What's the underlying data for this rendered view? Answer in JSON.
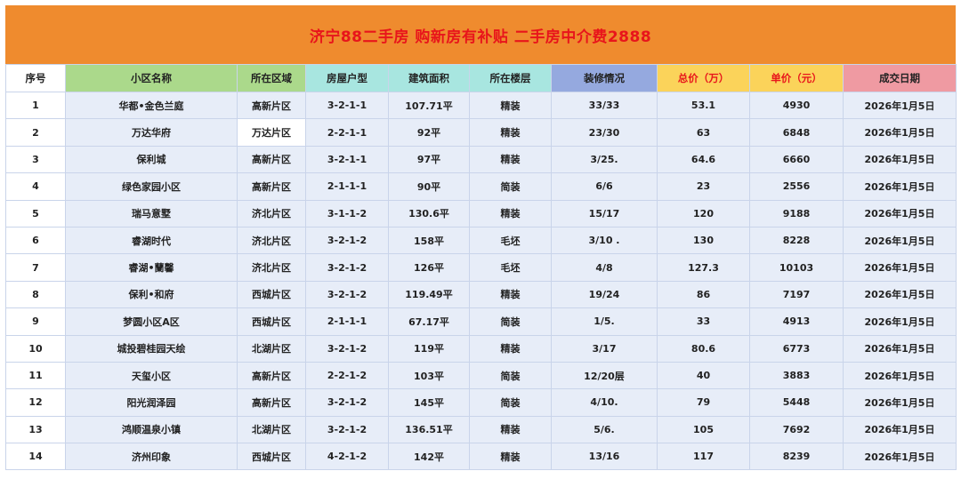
{
  "title": "济宁88二手房 购新房有补贴 二手房中介费2888",
  "headers": [
    "序号",
    "小区名称",
    "所在区域",
    "房屋户型",
    "建筑面积",
    "所在楼层",
    "装修情况",
    "总价（万）",
    "单价（元）",
    "成交日期"
  ],
  "colors": {
    "banner": "#ef8b2e",
    "title_text": "#e8151b",
    "header_green": "#abd98b",
    "header_cyan": "#a8e6e0",
    "header_blue": "#95a9df",
    "header_yellow": "#fbd35a",
    "header_pink": "#ef9aa2",
    "row_fill": "#e7edf8"
  },
  "rows": [
    [
      "1",
      "华都•金色兰庭",
      "高新片区",
      "3-2-1-1",
      "107.71平",
      "精装",
      "33/33",
      "53.1",
      "4930",
      "2026年1月5日"
    ],
    [
      "2",
      "万达华府",
      "万达片区",
      "2-2-1-1",
      "92平",
      "精装",
      "23/30",
      "63",
      "6848",
      "2026年1月5日"
    ],
    [
      "3",
      "保利城",
      "高新片区",
      "3-2-1-1",
      "97平",
      "精装",
      "3/25.",
      "64.6",
      "6660",
      "2026年1月5日"
    ],
    [
      "4",
      "绿色家园小区",
      "高新片区",
      "2-1-1-1",
      "90平",
      "简装",
      "6/6",
      "23",
      "2556",
      "2026年1月5日"
    ],
    [
      "5",
      "瑞马意墅",
      "济北片区",
      "3-1-1-2",
      "130.6平",
      "精装",
      "15/17",
      "120",
      "9188",
      "2026年1月5日"
    ],
    [
      "6",
      "睿湖时代",
      "济北片区",
      "3-2-1-2",
      "158平",
      "毛坯",
      "3/10 .",
      "130",
      "8228",
      "2026年1月5日"
    ],
    [
      "7",
      "睿湖•蘭馨",
      "济北片区",
      "3-2-1-2",
      "126平",
      "毛坯",
      "4/8",
      "127.3",
      "10103",
      "2026年1月5日"
    ],
    [
      "8",
      "保利•和府",
      "西城片区",
      "3-2-1-2",
      "119.49平",
      "精装",
      "19/24",
      "86",
      "7197",
      "2026年1月5日"
    ],
    [
      "9",
      "梦圆小区A区",
      "西城片区",
      "2-1-1-1",
      "67.17平",
      "简装",
      "1/5.",
      "33",
      "4913",
      "2026年1月5日"
    ],
    [
      "10",
      "城投碧桂园天绘",
      "北湖片区",
      "3-2-1-2",
      "119平",
      "精装",
      "3/17",
      "80.6",
      "6773",
      "2026年1月5日"
    ],
    [
      "11",
      "天玺小区",
      "高新片区",
      "2-2-1-2",
      "103平",
      "简装",
      "12/20层",
      "40",
      "3883",
      "2026年1月5日"
    ],
    [
      "12",
      "阳光润泽园",
      "高新片区",
      "3-2-1-2",
      "145平",
      "简装",
      "4/10.",
      "79",
      "5448",
      "2026年1月5日"
    ],
    [
      "13",
      "鸿顺温泉小镇",
      "北湖片区",
      "3-2-1-2",
      "136.51平",
      "精装",
      "5/6.",
      "105",
      "7692",
      "2026年1月5日"
    ],
    [
      "14",
      "济州印象",
      "西城片区",
      "4-2-1-2",
      "142平",
      "精装",
      "13/16",
      "117",
      "8239",
      "2026年1月5日"
    ]
  ]
}
